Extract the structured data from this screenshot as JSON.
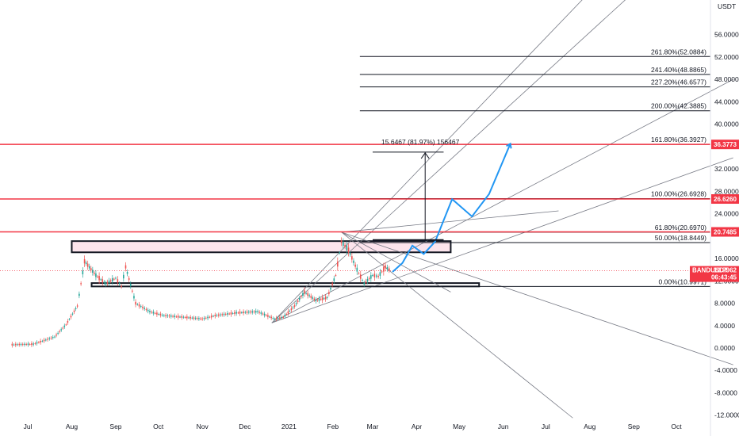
{
  "chart_data": {
    "type": "line",
    "symbol": "BANDUSDT",
    "last_price": "13.7962",
    "countdown": "06:43:45",
    "currency": "USDT",
    "ylim": [
      -12,
      62
    ],
    "y_ticks": [
      "-12.0000",
      "-8.0000",
      "-4.0000",
      "0.0000",
      "4.0000",
      "8.0000",
      "12.0000",
      "16.0000",
      "24.0000",
      "28.0000",
      "32.0000",
      "40.0000",
      "44.0000",
      "48.0000",
      "52.0000",
      "56.0000"
    ],
    "y_tick_values": [
      -12,
      -8,
      -4,
      0,
      4,
      8,
      12,
      16,
      24,
      28,
      32,
      40,
      44,
      48,
      52,
      56
    ],
    "x_ticks": [
      "Jul",
      "Aug",
      "Sep",
      "Oct",
      "Nov",
      "Dec",
      "2021",
      "Feb",
      "Mar",
      "Apr",
      "May",
      "Jun",
      "Jul",
      "Aug",
      "Sep",
      "Oct"
    ],
    "x_tick_dates": [
      "2020-07-01",
      "2020-08-01",
      "2020-09-01",
      "2020-10-01",
      "2020-11-01",
      "2020-12-01",
      "2021-01-01",
      "2021-02-01",
      "2021-03-01",
      "2021-04-01",
      "2021-05-01",
      "2021-06-01",
      "2021-07-01",
      "2021-08-01",
      "2021-09-01",
      "2021-10-01"
    ],
    "price_series": {
      "dates": [
        "2020-06-20",
        "2020-07-05",
        "2020-07-20",
        "2020-07-28",
        "2020-08-05",
        "2020-08-10",
        "2020-08-18",
        "2020-08-25",
        "2020-09-01",
        "2020-09-05",
        "2020-09-08",
        "2020-09-15",
        "2020-09-25",
        "2020-10-05",
        "2020-10-20",
        "2020-11-01",
        "2020-11-10",
        "2020-11-25",
        "2020-12-10",
        "2020-12-22",
        "2020-12-28",
        "2021-01-05",
        "2021-01-12",
        "2021-01-20",
        "2021-01-28",
        "2021-02-03",
        "2021-02-07",
        "2021-02-12",
        "2021-02-18",
        "2021-02-23",
        "2021-03-01",
        "2021-03-05",
        "2021-03-10",
        "2021-03-14"
      ],
      "values": [
        0.6,
        0.7,
        2.0,
        4.2,
        7.5,
        15.5,
        13.0,
        11.5,
        12.5,
        11.0,
        14.5,
        8.0,
        6.5,
        5.8,
        5.5,
        5.2,
        5.8,
        6.3,
        6.5,
        5.2,
        5.5,
        7.5,
        10.0,
        8.5,
        9.0,
        13.0,
        19.0,
        17.5,
        14.0,
        11.5,
        13.0,
        12.8,
        14.5,
        13.8
      ]
    },
    "horizontal_levels": [
      {
        "value": 36.3773,
        "badge": "36.3773",
        "color": "#f23645"
      },
      {
        "value": 26.626,
        "badge": "26.6260",
        "color": "#f23645"
      },
      {
        "value": 20.7485,
        "badge": "20.7485",
        "color": "#f23645"
      }
    ],
    "fib_levels": [
      {
        "label": "261.80%(52.0884)",
        "value": 52.0884
      },
      {
        "label": "241.40%(48.8865)",
        "value": 48.8865
      },
      {
        "label": "227.20%(46.6577)",
        "value": 46.6577
      },
      {
        "label": "200.00%(42.3885)",
        "value": 42.3885
      },
      {
        "label": "161.80%(36.3927)",
        "value": 36.3927
      },
      {
        "label": "100.00%(26.6928)",
        "value": 26.6928
      },
      {
        "label": "61.80%(20.6970)",
        "value": 20.697
      },
      {
        "label": "50.00%(18.8449)",
        "value": 18.8449
      },
      {
        "label": "0.00%(10.9971)",
        "value": 10.9971
      }
    ],
    "zones": [
      {
        "date_from": "2020-08-01",
        "date_to": "2021-04-25",
        "y_from": 17.1,
        "y_to": 19.1
      },
      {
        "date_from": "2020-08-15",
        "date_to": "2021-05-15",
        "y_from": 11.0,
        "y_to": 11.6
      }
    ],
    "measure_label": "15.6467 (81.97%) 156467",
    "projection": {
      "dates": [
        "2021-03-15",
        "2021-03-22",
        "2021-03-29",
        "2021-04-06",
        "2021-04-14",
        "2021-04-26",
        "2021-05-10",
        "2021-05-22",
        "2021-06-06"
      ],
      "values": [
        13.6,
        15.2,
        18.3,
        16.8,
        19.0,
        26.6,
        23.5,
        27.5,
        36.5
      ]
    }
  }
}
